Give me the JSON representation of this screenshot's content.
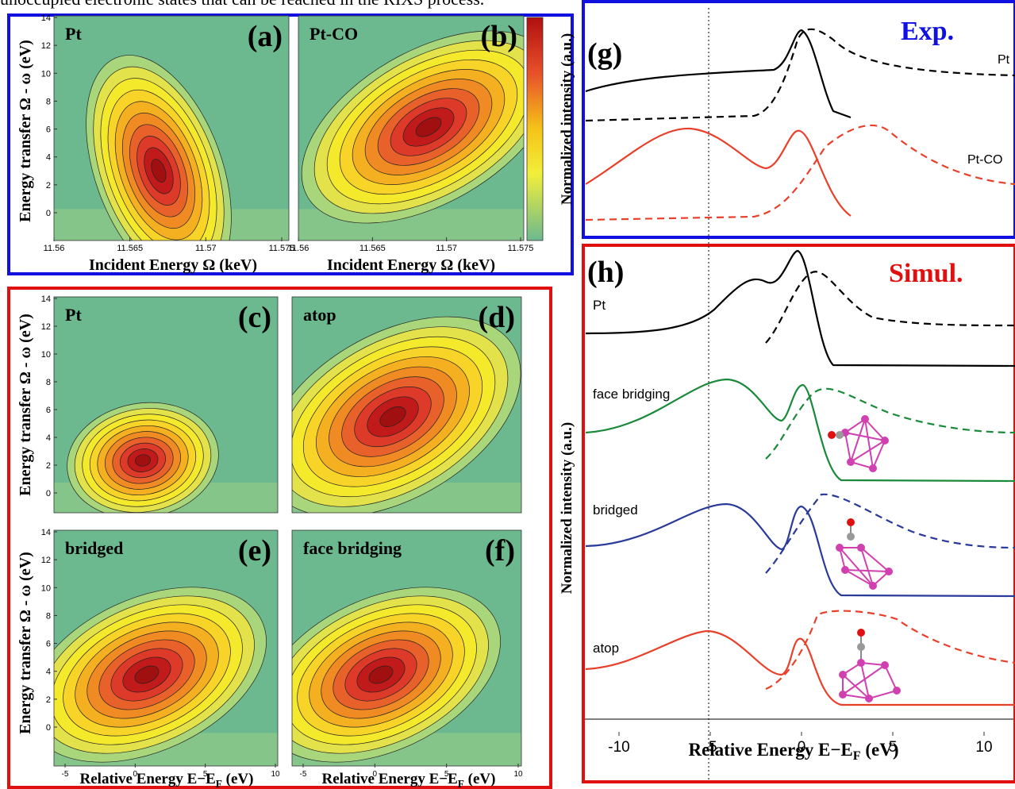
{
  "intro_text": "unoccupied electronic states that can be reached in the RIXS process.",
  "top_panels": {
    "a": {
      "label": "(a)",
      "tag": "Pt"
    },
    "b": {
      "label": "(b)",
      "tag": "Pt-CO"
    },
    "y_axis_label": "Energy transfer Ω - ω (eV)",
    "x_axis_label": "Incident Energy Ω (keV)",
    "yticks": [
      0,
      2,
      4,
      6,
      8,
      10,
      12,
      14
    ],
    "xticks": [
      11.56,
      11.565,
      11.57,
      11.575
    ]
  },
  "bottom_panels": {
    "c": {
      "label": "(c)",
      "tag": "Pt"
    },
    "d": {
      "label": "(d)",
      "tag": "atop"
    },
    "e": {
      "label": "(e)",
      "tag": "bridged"
    },
    "f": {
      "label": "(f)",
      "tag": "face bridging"
    },
    "y_axis_label": "Energy transfer Ω - ω (eV)",
    "x_axis_label": {
      "text": "Relative Energy E−E",
      "sub": "F",
      "unit": " (eV)"
    },
    "yticks": [
      0,
      2,
      4,
      6,
      8,
      10,
      12,
      14
    ],
    "xticks": [
      -5,
      0,
      5,
      10
    ]
  },
  "g": {
    "label": "(g)",
    "title": "Exp.",
    "y_axis_label": "Normalized intensity (a.u.)",
    "curves": [
      "Pt",
      "Pt-CO"
    ]
  },
  "h": {
    "label": "(h)",
    "title": "Simul.",
    "y_axis_label": "Normalized intensity (a.u.)",
    "curves": [
      "Pt",
      "face bridging",
      "bridged",
      "atop"
    ],
    "x_axis_label": {
      "text": "Relative Energy E−E",
      "sub": "F",
      "unit": " (eV)"
    },
    "xticks": [
      -10,
      -5,
      0,
      5,
      10
    ]
  }
}
